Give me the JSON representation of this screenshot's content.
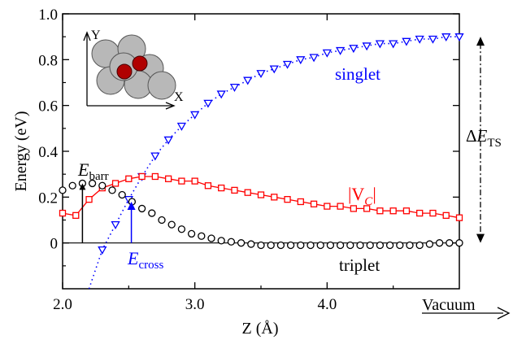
{
  "chart_data": {
    "type": "scatter",
    "xlabel": "Z (Å)",
    "ylabel": "Energy (eV)",
    "xlim": [
      2.0,
      5.0
    ],
    "ylim": [
      -0.2,
      1.0
    ],
    "x_ticks": [
      "2.0",
      "3.0",
      "4.0"
    ],
    "y_ticks": [
      "0",
      "0.2",
      "0.4",
      "0.6",
      "0.8",
      "1.0"
    ],
    "vacuum_label": "Vacuum",
    "series": [
      {
        "name": "singlet",
        "marker": "triangle-down",
        "color": "#0000ff",
        "x": [
          2.3,
          2.4,
          2.5,
          2.6,
          2.7,
          2.8,
          2.9,
          3.0,
          3.1,
          3.2,
          3.3,
          3.4,
          3.5,
          3.6,
          3.7,
          3.8,
          3.9,
          4.0,
          4.1,
          4.2,
          4.3,
          4.4,
          4.5,
          4.6,
          4.7,
          4.8,
          4.9,
          5.0
        ],
        "y": [
          -0.03,
          0.08,
          0.19,
          0.29,
          0.38,
          0.45,
          0.51,
          0.56,
          0.61,
          0.65,
          0.68,
          0.71,
          0.74,
          0.76,
          0.78,
          0.8,
          0.81,
          0.83,
          0.84,
          0.85,
          0.86,
          0.87,
          0.87,
          0.88,
          0.89,
          0.89,
          0.9,
          0.9
        ]
      },
      {
        "name": "|V_C|",
        "marker": "square",
        "color": "#ff0000",
        "x": [
          2.0,
          2.1,
          2.2,
          2.3,
          2.4,
          2.5,
          2.6,
          2.7,
          2.8,
          2.9,
          3.0,
          3.1,
          3.2,
          3.3,
          3.4,
          3.5,
          3.6,
          3.7,
          3.8,
          3.9,
          4.0,
          4.1,
          4.2,
          4.3,
          4.4,
          4.5,
          4.6,
          4.7,
          4.8,
          4.9,
          5.0
        ],
        "y": [
          0.13,
          0.12,
          0.19,
          0.24,
          0.26,
          0.28,
          0.29,
          0.29,
          0.28,
          0.27,
          0.27,
          0.25,
          0.24,
          0.23,
          0.22,
          0.21,
          0.2,
          0.19,
          0.18,
          0.17,
          0.16,
          0.16,
          0.15,
          0.15,
          0.14,
          0.14,
          0.14,
          0.13,
          0.13,
          0.12,
          0.11
        ]
      },
      {
        "name": "triplet",
        "marker": "circle",
        "color": "#000000",
        "x": [
          2.0,
          2.075,
          2.15,
          2.225,
          2.3,
          2.375,
          2.45,
          2.525,
          2.6,
          2.675,
          2.75,
          2.825,
          2.9,
          2.975,
          3.05,
          3.125,
          3.2,
          3.275,
          3.35,
          3.425,
          3.5,
          3.575,
          3.65,
          3.725,
          3.8,
          3.875,
          3.95,
          4.025,
          4.1,
          4.175,
          4.25,
          4.325,
          4.4,
          4.475,
          4.55,
          4.625,
          4.7,
          4.775,
          4.85,
          4.925,
          5.0
        ],
        "y": [
          0.23,
          0.25,
          0.26,
          0.26,
          0.25,
          0.23,
          0.21,
          0.18,
          0.15,
          0.13,
          0.1,
          0.08,
          0.06,
          0.04,
          0.03,
          0.02,
          0.01,
          0.005,
          0.0,
          -0.005,
          -0.01,
          -0.01,
          -0.01,
          -0.01,
          -0.01,
          -0.01,
          -0.01,
          -0.01,
          -0.01,
          -0.01,
          -0.01,
          -0.01,
          -0.01,
          -0.01,
          -0.01,
          -0.01,
          -0.01,
          -0.005,
          0.0,
          0.0,
          0.0
        ]
      }
    ],
    "annotations": {
      "singlet_label": "singlet",
      "vc_label": "|V",
      "vc_sub": "C",
      "vc_close": "|",
      "triplet_label": "triplet",
      "ebarr_main": "E",
      "ebarr_sub": "barr",
      "ecross_main": "E",
      "ecross_sub": "cross",
      "dets_prefix": "Δ",
      "dets_main": "E",
      "dets_sub": "TS",
      "ebarr_x": 2.15,
      "ebarr_y": 0.26,
      "ecross_x": 2.52,
      "ecross_y": 0.18,
      "singlet_fit_x0": 2.2,
      "dets_top": 0.9,
      "dets_bottom": 0.0
    },
    "inset": {
      "axis_x": "X",
      "axis_y": "Y"
    }
  }
}
